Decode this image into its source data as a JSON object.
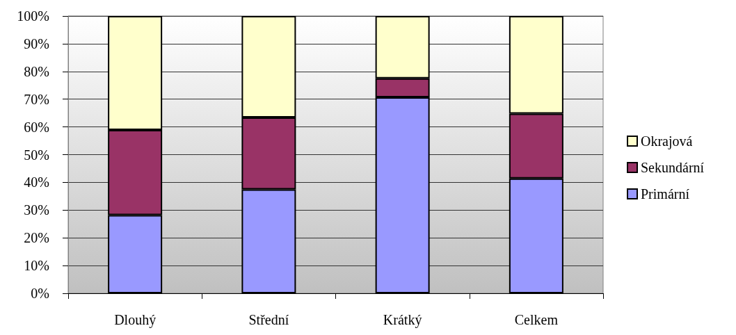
{
  "chart_data": {
    "type": "bar",
    "stacked": true,
    "categories": [
      "Dlouhý",
      "Střední",
      "Krátký",
      "Celkem"
    ],
    "series": [
      {
        "name": "Primární",
        "color": "#9999ff",
        "values": [
          28.2,
          37.5,
          70.7,
          41.4
        ]
      },
      {
        "name": "Sekundární",
        "color": "#993366",
        "values": [
          30.7,
          25.9,
          6.8,
          23.4
        ]
      },
      {
        "name": "Okrajová",
        "color": "#ffffcc",
        "values": [
          41.1,
          36.6,
          22.5,
          35.2
        ]
      }
    ],
    "ylim": [
      0,
      100
    ],
    "yticks": [
      {
        "value": 0,
        "label": "0%"
      },
      {
        "value": 10,
        "label": "10%"
      },
      {
        "value": 20,
        "label": "20%"
      },
      {
        "value": 30,
        "label": "30%"
      },
      {
        "value": 40,
        "label": "40%"
      },
      {
        "value": 50,
        "label": "50%"
      },
      {
        "value": 60,
        "label": "60%"
      },
      {
        "value": 70,
        "label": "70%"
      },
      {
        "value": 80,
        "label": "80%"
      },
      {
        "value": 90,
        "label": "90%"
      },
      {
        "value": 100,
        "label": "100%"
      }
    ],
    "grid": "y",
    "legend": "right"
  }
}
